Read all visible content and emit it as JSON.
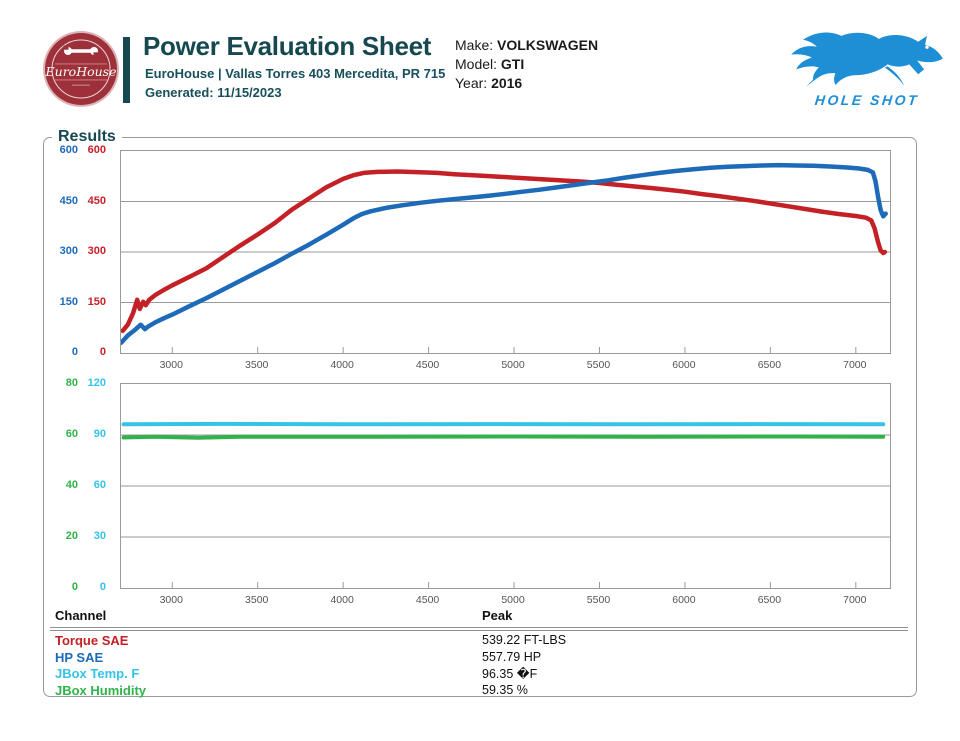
{
  "header": {
    "badge_text": "EuroHouse",
    "title": "Power Evaluation Sheet",
    "address_line": "EuroHouse | Vallas Torres 403 Mercedita, PR 715",
    "generated_line": "Generated: 11/15/2023",
    "partner_logo_text": "HOLE SHOT"
  },
  "vehicle": {
    "make_label": "Make:",
    "make": "VOLKSWAGEN",
    "model_label": "Model:",
    "model": "GTI",
    "year_label": "Year:",
    "year": "2016"
  },
  "results_label": "Results",
  "colors": {
    "accent_teal": "#164850",
    "torque_red": "#c42127",
    "hp_blue": "#1d6ab9",
    "temp_cyan": "#35c3e8",
    "humidity_green": "#2fb34a",
    "badge_red": "#9e3039",
    "holeshot_blue": "#1e8fd5",
    "grid_gray": "#9a9a9a"
  },
  "chart_data": [
    {
      "type": "line",
      "x_range": [
        2700,
        7200
      ],
      "x_ticks": [
        3000,
        3500,
        4000,
        4500,
        5000,
        5500,
        6000,
        6500,
        7000
      ],
      "grid": true,
      "y_axes": [
        {
          "name": "HP scale",
          "color": "#1d6ab9",
          "max": 600,
          "ticks": [
            600,
            450,
            300,
            150,
            0
          ]
        },
        {
          "name": "Torque scale",
          "color": "#c42127",
          "max": 600,
          "ticks": [
            600,
            450,
            300,
            150,
            0
          ]
        }
      ],
      "series": [
        {
          "name": "Torque SAE",
          "color": "#c42127",
          "axis_max": 600,
          "width": 4.5,
          "points": [
            [
              2710,
              66
            ],
            [
              2740,
              84
            ],
            [
              2770,
              118
            ],
            [
              2795,
              158
            ],
            [
              2810,
              131
            ],
            [
              2830,
              152
            ],
            [
              2845,
              142
            ],
            [
              2865,
              158
            ],
            [
              2900,
              172
            ],
            [
              2950,
              187
            ],
            [
              3000,
              201
            ],
            [
              3100,
              226
            ],
            [
              3200,
              252
            ],
            [
              3300,
              286
            ],
            [
              3400,
              320
            ],
            [
              3500,
              352
            ],
            [
              3600,
              386
            ],
            [
              3700,
              426
            ],
            [
              3800,
              459
            ],
            [
              3900,
              492
            ],
            [
              4000,
              517
            ],
            [
              4060,
              528
            ],
            [
              4120,
              535
            ],
            [
              4200,
              538
            ],
            [
              4320,
              539
            ],
            [
              4450,
              537
            ],
            [
              4550,
              535
            ],
            [
              4650,
              531
            ],
            [
              4720,
              529
            ],
            [
              4800,
              527
            ],
            [
              4900,
              524
            ],
            [
              5000,
              521
            ],
            [
              5100,
              518
            ],
            [
              5200,
              515
            ],
            [
              5300,
              512
            ],
            [
              5400,
              509
            ],
            [
              5500,
              505
            ],
            [
              5600,
              500
            ],
            [
              5700,
              495
            ],
            [
              5800,
              490
            ],
            [
              5900,
              485
            ],
            [
              6000,
              479
            ],
            [
              6100,
              472
            ],
            [
              6200,
              466
            ],
            [
              6300,
              459
            ],
            [
              6400,
              452
            ],
            [
              6500,
              444
            ],
            [
              6600,
              436
            ],
            [
              6700,
              428
            ],
            [
              6800,
              420
            ],
            [
              6900,
              413
            ],
            [
              7000,
              407
            ],
            [
              7060,
              402
            ],
            [
              7090,
              394
            ],
            [
              7110,
              370
            ],
            [
              7130,
              330
            ],
            [
              7145,
              305
            ],
            [
              7160,
              297
            ],
            [
              7170,
              300
            ]
          ]
        },
        {
          "name": "HP SAE",
          "color": "#1d6ab9",
          "axis_max": 600,
          "width": 4.5,
          "points": [
            [
              2700,
              30
            ],
            [
              2740,
              52
            ],
            [
              2780,
              68
            ],
            [
              2815,
              84
            ],
            [
              2840,
              71
            ],
            [
              2860,
              79
            ],
            [
              2900,
              91
            ],
            [
              2950,
              103
            ],
            [
              3000,
              114
            ],
            [
              3100,
              139
            ],
            [
              3200,
              163
            ],
            [
              3300,
              189
            ],
            [
              3400,
              215
            ],
            [
              3500,
              241
            ],
            [
              3600,
              267
            ],
            [
              3700,
              295
            ],
            [
              3800,
              322
            ],
            [
              3900,
              351
            ],
            [
              4000,
              381
            ],
            [
              4060,
              400
            ],
            [
              4110,
              413
            ],
            [
              4160,
              421
            ],
            [
              4250,
              431
            ],
            [
              4350,
              439
            ],
            [
              4450,
              446
            ],
            [
              4550,
              452
            ],
            [
              4650,
              457
            ],
            [
              4750,
              462
            ],
            [
              4850,
              467
            ],
            [
              4950,
              473
            ],
            [
              5050,
              479
            ],
            [
              5150,
              485
            ],
            [
              5250,
              492
            ],
            [
              5350,
              499
            ],
            [
              5450,
              506
            ],
            [
              5550,
              513
            ],
            [
              5650,
              521
            ],
            [
              5750,
              528
            ],
            [
              5850,
              535
            ],
            [
              5950,
              541
            ],
            [
              6050,
              546
            ],
            [
              6150,
              550
            ],
            [
              6250,
              553
            ],
            [
              6350,
              555
            ],
            [
              6450,
              557
            ],
            [
              6550,
              558
            ],
            [
              6650,
              557
            ],
            [
              6750,
              556
            ],
            [
              6850,
              554
            ],
            [
              6950,
              551
            ],
            [
              7020,
              548
            ],
            [
              7070,
              544
            ],
            [
              7100,
              536
            ],
            [
              7115,
              510
            ],
            [
              7130,
              465
            ],
            [
              7145,
              425
            ],
            [
              7160,
              406
            ],
            [
              7175,
              414
            ]
          ]
        }
      ]
    },
    {
      "type": "line",
      "x_range": [
        2700,
        7200
      ],
      "x_ticks": [
        3000,
        3500,
        4000,
        4500,
        5000,
        5500,
        6000,
        6500,
        7000
      ],
      "grid": true,
      "y_axes": [
        {
          "name": "Humidity scale",
          "color": "#2fb34a",
          "max": 80,
          "ticks": [
            80,
            60,
            40,
            20,
            0
          ]
        },
        {
          "name": "Temp scale",
          "color": "#35c3e8",
          "max": 120,
          "ticks": [
            120,
            90,
            60,
            30,
            0
          ]
        }
      ],
      "series": [
        {
          "name": "JBox Temp. F",
          "color": "#35c3e8",
          "axis_max": 120,
          "width": 4,
          "points": [
            [
              2715,
              96.3
            ],
            [
              3300,
              96.5
            ],
            [
              4000,
              96.3
            ],
            [
              4800,
              96.4
            ],
            [
              5600,
              96.3
            ],
            [
              6400,
              96.4
            ],
            [
              7160,
              96.3
            ]
          ]
        },
        {
          "name": "JBox Humidity",
          "color": "#2fb34a",
          "axis_max": 80,
          "width": 4,
          "points": [
            [
              2715,
              59.0
            ],
            [
              2900,
              59.3
            ],
            [
              3150,
              58.9
            ],
            [
              3400,
              59.3
            ],
            [
              4200,
              59.3
            ],
            [
              5000,
              59.4
            ],
            [
              5800,
              59.3
            ],
            [
              6600,
              59.4
            ],
            [
              7160,
              59.3
            ]
          ]
        }
      ]
    }
  ],
  "table": {
    "col1_header": "Channel",
    "col2_header": "Peak",
    "rows": [
      {
        "channel": "Torque SAE",
        "color": "#c42127",
        "peak": "539.22 FT-LBS"
      },
      {
        "channel": "HP SAE",
        "color": "#1d6ab9",
        "peak": "557.79 HP"
      },
      {
        "channel": "JBox Temp. F",
        "color": "#35c3e8",
        "peak": "96.35 �F"
      },
      {
        "channel": "JBox Humidity",
        "color": "#2fb34a",
        "peak": "59.35 %"
      }
    ]
  }
}
